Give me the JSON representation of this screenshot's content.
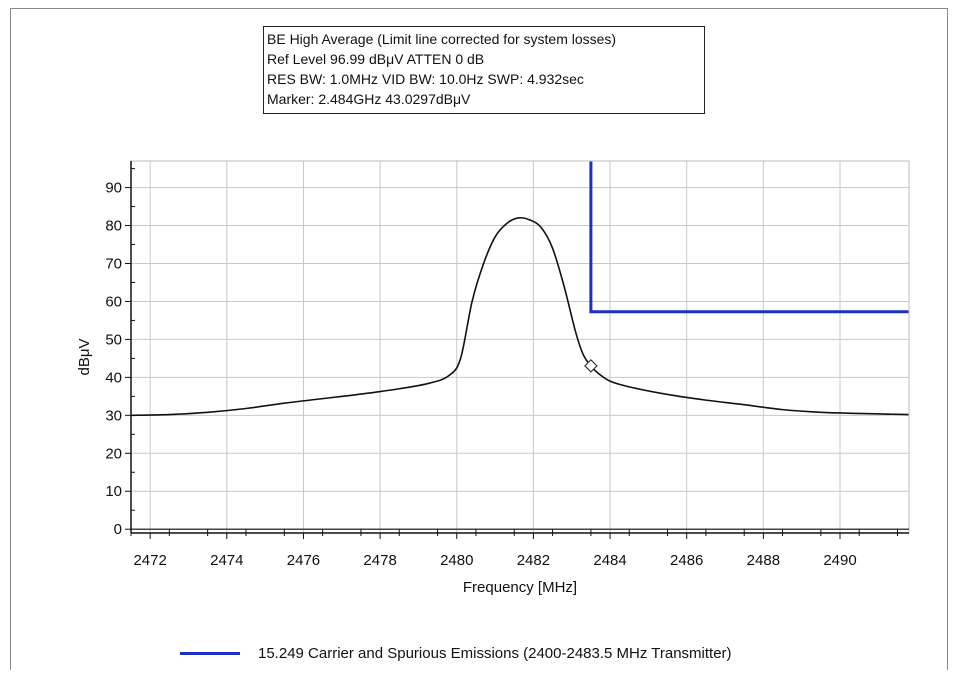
{
  "colors": {
    "limit": "#1f2fbf",
    "trace": "#111111",
    "grid": "#c8c8c8"
  },
  "info": {
    "line1": "BE High Average (Limit line corrected for system losses)",
    "line2": "Ref Level 96.99 dBμV    ATTEN 0 dB",
    "line3": "RES BW: 1.0MHz  VID BW: 10.0Hz  SWP: 4.932sec",
    "line4": "Marker: 2.484GHz  43.0297dBμV"
  },
  "legend": {
    "label": "15.249 Carrier and Spurious Emissions (2400-2483.5 MHz Transmitter)"
  },
  "chart_data": {
    "type": "line",
    "xlabel": "Frequency [MHz]",
    "ylabel": "dBμV",
    "xlim": [
      2471.5,
      2491.8
    ],
    "ylim": [
      -1,
      97
    ],
    "xticks": [
      2472,
      2474,
      2476,
      2478,
      2480,
      2482,
      2484,
      2486,
      2488,
      2490
    ],
    "yticks": [
      0,
      10,
      20,
      30,
      40,
      50,
      60,
      70,
      80,
      90
    ],
    "grid": true,
    "legend_position": "bottom",
    "series": [
      {
        "name": "",
        "x": [
          2471.5,
          2472.5,
          2473.5,
          2474.5,
          2475.5,
          2476.5,
          2477.5,
          2478.5,
          2479.3,
          2479.8,
          2480.1,
          2480.4,
          2480.7,
          2481.0,
          2481.3,
          2481.6,
          2481.9,
          2482.2,
          2482.5,
          2482.8,
          2483.1,
          2483.3,
          2483.5,
          2483.7,
          2484.0,
          2484.5,
          2485.5,
          2486.5,
          2487.5,
          2488.5,
          2489.5,
          2490.5,
          2491.8
        ],
        "y": [
          30,
          30.2,
          30.8,
          31.8,
          33.2,
          34.4,
          35.6,
          37.0,
          38.5,
          40.5,
          45,
          60,
          70,
          77,
          80.5,
          82,
          81.5,
          79.5,
          74,
          64,
          52,
          46,
          43,
          41,
          39,
          37.5,
          35.5,
          34,
          32.8,
          31.5,
          30.8,
          30.5,
          30.2
        ]
      },
      {
        "name": "15.249 Carrier and Spurious Emissions (2400-2483.5 MHz Transmitter)",
        "x": [
          2483.5,
          2483.5,
          2491.8
        ],
        "y": [
          97,
          57.3,
          57.3
        ]
      }
    ],
    "marker": {
      "x": 2483.5,
      "y": 43.03
    }
  }
}
